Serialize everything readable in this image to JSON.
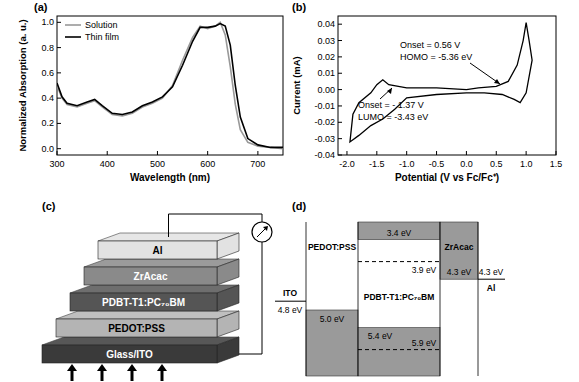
{
  "chart_data": [
    {
      "type": "line",
      "title": "(a)",
      "x_label": "Wavelength (nm)",
      "y_label": "Normalized Absorption (a. u.)",
      "x": [
        300,
        310,
        320,
        340,
        360,
        375,
        390,
        410,
        430,
        450,
        470,
        490,
        510,
        530,
        550,
        570,
        585,
        600,
        615,
        625,
        635,
        645,
        655,
        665,
        680,
        700,
        725,
        750
      ],
      "series": [
        {
          "name": "Solution",
          "color": "#999999",
          "values": [
            0.5,
            0.4,
            0.35,
            0.33,
            0.36,
            0.38,
            0.33,
            0.27,
            0.26,
            0.28,
            0.33,
            0.36,
            0.4,
            0.5,
            0.7,
            0.88,
            0.97,
            0.95,
            0.97,
            1.0,
            0.9,
            0.65,
            0.35,
            0.15,
            0.05,
            0.02,
            0.01,
            0.0
          ]
        },
        {
          "name": "Thin film",
          "color": "#000000",
          "values": [
            0.52,
            0.41,
            0.36,
            0.34,
            0.37,
            0.39,
            0.34,
            0.28,
            0.27,
            0.29,
            0.34,
            0.37,
            0.41,
            0.49,
            0.66,
            0.85,
            0.96,
            0.96,
            0.97,
            0.99,
            0.97,
            0.82,
            0.5,
            0.25,
            0.08,
            0.03,
            0.01,
            0.01
          ]
        }
      ],
      "xlim": [
        300,
        750
      ],
      "xticks": [
        300,
        400,
        500,
        600,
        700
      ],
      "ylim": [
        -0.05,
        1.05
      ],
      "yticks": [
        {
          "value": 0,
          "label": "0.0"
        },
        0.2,
        0.4,
        0.6,
        0.8,
        {
          "value": 1,
          "label": "1.0"
        }
      ],
      "legend": "upper left"
    },
    {
      "type": "line",
      "title": "(b)",
      "x_label": "Potential (V vs Fc/Fc⁺)",
      "y_label": "Current (mA)",
      "color": "#000000",
      "x": [
        0,
        0.2,
        0.5,
        0.7,
        0.85,
        0.95,
        1.0,
        1.05,
        1.1,
        1.0,
        0.9,
        0.8,
        0.6,
        0.3,
        0,
        -0.5,
        -1.0,
        -1.2,
        -1.4,
        -1.6,
        -1.8,
        -1.95,
        -1.9,
        -1.8,
        -1.6,
        -1.5,
        -1.4,
        -1.3,
        -1.0,
        -0.5,
        0
      ],
      "values": [
        0,
        0.001,
        0.002,
        0.005,
        0.015,
        0.03,
        0.041,
        0.03,
        0.018,
        -0.002,
        -0.008,
        -0.006,
        -0.003,
        -0.002,
        -0.002,
        -0.003,
        -0.005,
        -0.012,
        -0.018,
        -0.022,
        -0.028,
        -0.032,
        -0.015,
        -0.008,
        -0.002,
        0.003,
        0.006,
        0.003,
        0.001,
        0.001,
        0
      ],
      "xlim": [
        -2.15,
        1.5
      ],
      "xticks": [
        {
          "value": -2,
          "label": "-2.0"
        },
        -1.5,
        {
          "value": -1,
          "label": "-1.0"
        },
        -0.5,
        {
          "value": 0,
          "label": "0.0"
        },
        0.5,
        {
          "value": 1,
          "label": "1.0"
        },
        1.5
      ],
      "ylim": [
        -0.04,
        0.045
      ],
      "yticks": [
        -0.04,
        -0.03,
        -0.02,
        -0.01,
        {
          "value": 0,
          "label": "0.00"
        },
        0.01,
        0.02,
        0.03,
        0.04
      ],
      "annotations": [
        "Onset = 0.56 V",
        "HOMO = -5.36 eV",
        "Onset = - 1.37 V",
        "LUMO = -3.43 eV"
      ]
    }
  ],
  "device": {
    "title": "(c)",
    "layers": [
      "Al",
      "ZrAcac",
      "PDBT-T1:PC₇₀BM",
      "PEDOT:PSS",
      "Glass/ITO"
    ]
  },
  "energy_diagram": {
    "title": "(d)",
    "materials": [
      {
        "label": "ITO",
        "type": "electrode",
        "levels": [
          {
            "value": 4.8,
            "label": "4.8 eV",
            "line_style": "solid"
          }
        ]
      },
      {
        "label": "PEDOT:PSS",
        "type": "layer",
        "levels": [
          {
            "value": 5.0,
            "label": "5.0 eV",
            "line_style": "solid"
          }
        ]
      },
      {
        "label": "PDBT-T1:PC₇₀BM",
        "type": "layer",
        "levels": [
          {
            "value": 3.4,
            "label": "3.4 eV",
            "line_style": "solid"
          },
          {
            "value": 3.9,
            "label": "3.9 eV",
            "line_style": "dashed"
          },
          {
            "value": 5.4,
            "label": "5.4 eV",
            "line_style": "solid"
          },
          {
            "value": 5.9,
            "label": "5.9 eV",
            "line_style": "dashed"
          }
        ]
      },
      {
        "label": "ZrAcac",
        "type": "layer",
        "levels": [
          {
            "value": 4.3,
            "label": "4.3 eV",
            "line_style": "solid"
          }
        ]
      },
      {
        "label": "Al",
        "type": "electrode",
        "levels": [
          {
            "value": 4.3,
            "label": "4.3 eV",
            "line_style": "solid"
          }
        ]
      }
    ]
  }
}
